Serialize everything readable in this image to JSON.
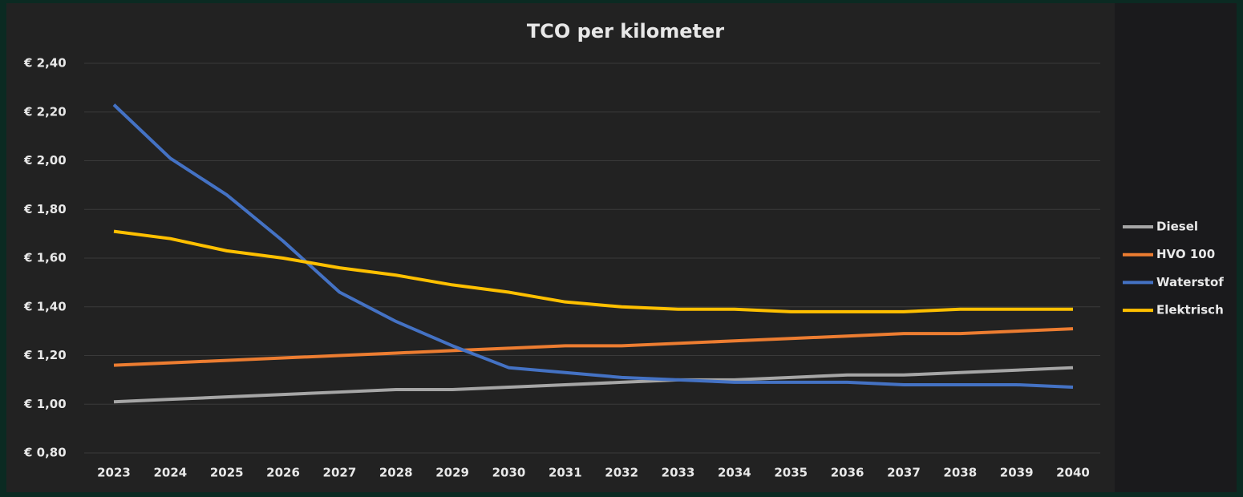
{
  "chart_data": {
    "type": "line",
    "title": "TCO per kilometer",
    "categories": [
      "2023",
      "2024",
      "2025",
      "2026",
      "2027",
      "2028",
      "2029",
      "2030",
      "2031",
      "2032",
      "2033",
      "2034",
      "2035",
      "2036",
      "2037",
      "2038",
      "2039",
      "2040"
    ],
    "series": [
      {
        "name": "Diesel",
        "color": "#a6a6a6",
        "values": [
          1.01,
          1.02,
          1.03,
          1.04,
          1.05,
          1.06,
          1.06,
          1.07,
          1.08,
          1.09,
          1.1,
          1.1,
          1.11,
          1.12,
          1.12,
          1.13,
          1.14,
          1.15
        ]
      },
      {
        "name": "HVO 100",
        "color": "#ed7d31",
        "values": [
          1.16,
          1.17,
          1.18,
          1.19,
          1.2,
          1.21,
          1.22,
          1.23,
          1.24,
          1.24,
          1.25,
          1.26,
          1.27,
          1.28,
          1.29,
          1.29,
          1.3,
          1.31
        ]
      },
      {
        "name": "Waterstof",
        "color": "#4472c4",
        "values": [
          2.23,
          2.01,
          1.86,
          1.67,
          1.46,
          1.34,
          1.24,
          1.15,
          1.13,
          1.11,
          1.1,
          1.09,
          1.09,
          1.09,
          1.08,
          1.08,
          1.08,
          1.07
        ]
      },
      {
        "name": "Elektrisch",
        "color": "#ffc000",
        "values": [
          1.71,
          1.68,
          1.63,
          1.6,
          1.56,
          1.53,
          1.49,
          1.46,
          1.42,
          1.4,
          1.39,
          1.39,
          1.38,
          1.38,
          1.38,
          1.39,
          1.39,
          1.39
        ]
      }
    ],
    "ylim": [
      0.8,
      2.4
    ],
    "yticks": [
      {
        "value": 0.8,
        "label": "€ 0,80"
      },
      {
        "value": 1.0,
        "label": "€ 1,00"
      },
      {
        "value": 1.2,
        "label": "€ 1,20"
      },
      {
        "value": 1.4,
        "label": "€ 1,40"
      },
      {
        "value": 1.6,
        "label": "€ 1,60"
      },
      {
        "value": 1.8,
        "label": "€ 1,80"
      },
      {
        "value": 2.0,
        "label": "€ 2,00"
      },
      {
        "value": 2.2,
        "label": "€ 2,20"
      },
      {
        "value": 2.4,
        "label": "€ 2,40"
      }
    ],
    "grid": true,
    "legend": "right"
  }
}
